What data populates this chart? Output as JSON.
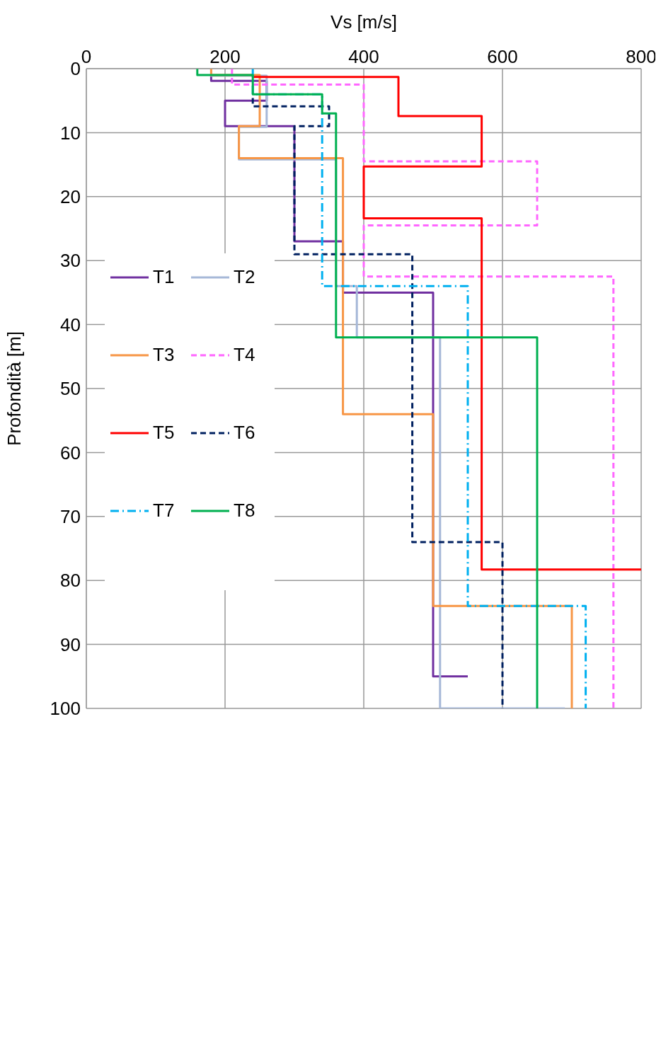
{
  "chart_data": {
    "type": "line",
    "xlabel": "Vs [m/s]",
    "ylabel": "Profondità  [m]",
    "xlim": [
      0,
      800
    ],
    "xticks": [
      0,
      200,
      400,
      600,
      800
    ],
    "ylim": [
      100,
      0
    ],
    "yticks": [
      0,
      10,
      20,
      30,
      40,
      50,
      60,
      70,
      80,
      90,
      100
    ],
    "grid": true,
    "legend": "left",
    "marker": "none",
    "series": [
      {
        "name": "T1",
        "color": "#7030a0",
        "line_style": "solid",
        "x": [
          180,
          180,
          260,
          260,
          200,
          200,
          300,
          300,
          370,
          370,
          500,
          500,
          550
        ],
        "values": [
          1,
          1.9,
          1.9,
          5,
          5,
          9,
          9,
          27,
          27,
          35,
          35,
          95,
          95
        ]
      },
      {
        "name": "T2",
        "color": "#a6b8d8",
        "line_style": "solid",
        "x": [
          180,
          180,
          260,
          260,
          220,
          220,
          360,
          360,
          390,
          390,
          510,
          510,
          690
        ],
        "values": [
          0,
          1.1,
          1.1,
          9.1,
          9.1,
          14.2,
          14.2,
          34,
          34,
          42,
          42,
          100,
          100
        ]
      },
      {
        "name": "T3",
        "color": "#f79646",
        "line_style": "solid",
        "x": [
          180,
          180,
          250,
          250,
          220,
          220,
          370,
          370,
          500,
          500,
          700,
          700
        ],
        "values": [
          0,
          1,
          1,
          9,
          9,
          14,
          14,
          54,
          54,
          84,
          84,
          100
        ]
      },
      {
        "name": "T4",
        "color": "#ff66ff",
        "line_style": "dashed",
        "x": [
          210,
          210,
          400,
          400,
          650,
          650,
          400,
          400,
          760,
          760
        ],
        "values": [
          0,
          2.5,
          2.5,
          14.5,
          14.5,
          24.5,
          24.5,
          32.5,
          32.5,
          100
        ]
      },
      {
        "name": "T5",
        "color": "#ff0000",
        "line_style": "solid",
        "x": [
          240,
          450,
          450,
          570,
          570,
          400,
          400,
          570,
          570,
          800
        ],
        "values": [
          1.3,
          1.3,
          7.4,
          7.4,
          15.3,
          15.3,
          23.4,
          23.4,
          78.3,
          78.3
        ]
      },
      {
        "name": "T6",
        "color": "#002060",
        "line_style": "dashed",
        "x": [
          240,
          240,
          350,
          350,
          300,
          300,
          470,
          470,
          600,
          600
        ],
        "values": [
          4.6,
          5.9,
          5.9,
          9,
          9,
          29,
          29,
          74,
          74,
          100
        ]
      },
      {
        "name": "T7",
        "color": "#00b0f0",
        "line_style": "dashdot",
        "x": [
          240,
          240,
          340,
          340,
          550,
          550,
          720,
          720
        ],
        "values": [
          0,
          4,
          4,
          34,
          34,
          84,
          84,
          100
        ]
      },
      {
        "name": "T8",
        "color": "#00b050",
        "line_style": "solid",
        "x": [
          160,
          160,
          240,
          240,
          340,
          340,
          360,
          360,
          650,
          650
        ],
        "values": [
          0,
          1,
          1,
          4,
          4,
          7,
          7,
          42,
          42,
          100
        ]
      }
    ]
  }
}
